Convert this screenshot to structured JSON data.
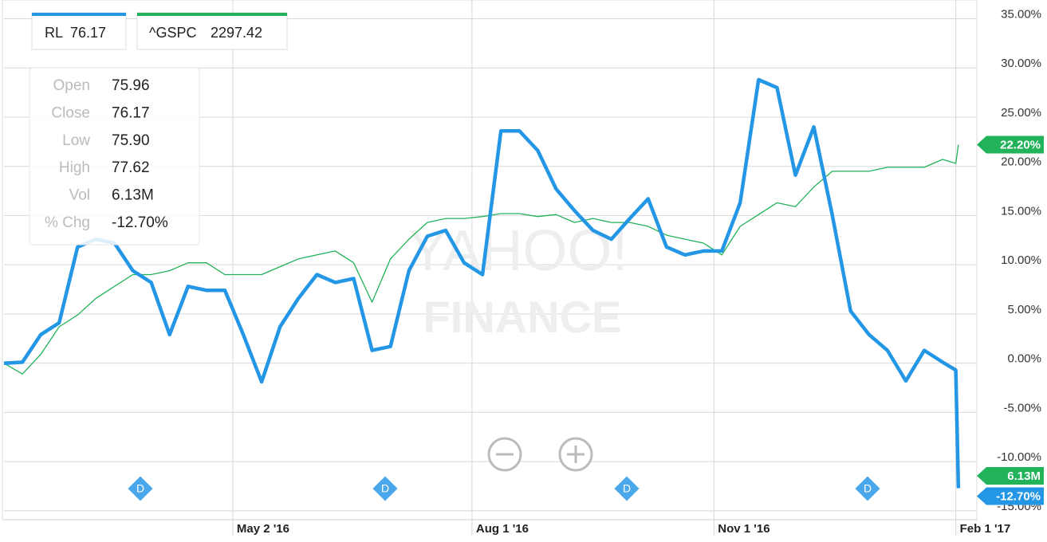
{
  "chart_data": {
    "type": "line",
    "x": [
      "2016-02-05",
      "2016-02-12",
      "2016-02-19",
      "2016-02-26",
      "2016-03-04",
      "2016-03-11",
      "2016-03-18",
      "2016-03-25",
      "2016-04-01",
      "2016-04-08",
      "2016-04-15",
      "2016-04-22",
      "2016-04-29",
      "2016-05-06",
      "2016-05-13",
      "2016-05-20",
      "2016-05-27",
      "2016-06-03",
      "2016-06-10",
      "2016-06-17",
      "2016-06-24",
      "2016-07-01",
      "2016-07-08",
      "2016-07-15",
      "2016-07-22",
      "2016-07-29",
      "2016-08-05",
      "2016-08-12",
      "2016-08-19",
      "2016-08-26",
      "2016-09-02",
      "2016-09-09",
      "2016-09-16",
      "2016-09-23",
      "2016-09-30",
      "2016-10-07",
      "2016-10-14",
      "2016-10-21",
      "2016-10-28",
      "2016-11-04",
      "2016-11-11",
      "2016-11-18",
      "2016-11-25",
      "2016-12-02",
      "2016-12-09",
      "2016-12-16",
      "2016-12-23",
      "2016-12-30",
      "2017-01-06",
      "2017-01-13",
      "2017-01-20",
      "2017-01-27",
      "2017-02-01",
      "2017-02-02"
    ],
    "series": [
      {
        "name": "RL",
        "last_price": "76.17",
        "color": "#2396e6",
        "last_value_label": "-12.70%",
        "values": [
          0,
          0.1,
          2.9,
          4.1,
          11.8,
          12.6,
          12.2,
          9.4,
          8.2,
          2.9,
          7.8,
          7.4,
          7.4,
          2.9,
          -1.9,
          3.7,
          6.6,
          9.0,
          8.2,
          8.6,
          1.3,
          1.7,
          9.4,
          12.9,
          13.5,
          10.2,
          9.0,
          23.6,
          23.6,
          21.6,
          17.7,
          15.5,
          13.5,
          12.6,
          14.7,
          16.7,
          11.8,
          11.0,
          11.4,
          11.4,
          16.3,
          28.8,
          28.0,
          19.1,
          24.0,
          15.1,
          5.3,
          2.9,
          1.3,
          -1.8,
          1.3,
          0.1,
          -0.7,
          -12.7
        ]
      },
      {
        "name": "^GSPC",
        "last_price": "2297.42",
        "color": "#21b25a",
        "last_value_label": "22.20%",
        "values": [
          0,
          -1.1,
          0.9,
          3.7,
          4.9,
          6.6,
          7.8,
          9.0,
          9.0,
          9.4,
          10.2,
          10.2,
          9.0,
          9.0,
          9.0,
          9.8,
          10.6,
          11.0,
          11.4,
          10.2,
          6.2,
          10.6,
          12.6,
          14.3,
          14.7,
          14.7,
          14.9,
          15.2,
          15.2,
          14.9,
          15.1,
          14.3,
          14.7,
          14.3,
          14.3,
          13.9,
          13.0,
          12.6,
          12.2,
          11.0,
          13.9,
          15.1,
          16.3,
          15.9,
          17.9,
          19.5,
          19.5,
          19.5,
          19.9,
          19.9,
          19.9,
          20.7,
          20.3,
          22.2
        ]
      }
    ],
    "xlim": [
      "2016-02-05",
      "2017-02-09"
    ],
    "xticks": [
      {
        "value": "2016-05-02",
        "label": "May 2 '16"
      },
      {
        "value": "2016-08-01",
        "label": "Aug 1 '16"
      },
      {
        "value": "2016-11-01",
        "label": "Nov 1 '16"
      },
      {
        "value": "2017-02-01",
        "label": "Feb 1 '17"
      }
    ],
    "ylim": [
      -15.9,
      36.9
    ],
    "yticks": [
      {
        "value": 35,
        "label": "35.00%"
      },
      {
        "value": 30,
        "label": "30.00%"
      },
      {
        "value": 25,
        "label": "25.00%"
      },
      {
        "value": 20,
        "label": "20.00%"
      },
      {
        "value": 15,
        "label": "15.00%"
      },
      {
        "value": 10,
        "label": "10.00%"
      },
      {
        "value": 5,
        "label": "5.00%"
      },
      {
        "value": 0,
        "label": "0.00%"
      },
      {
        "value": -5,
        "label": "-5.00%"
      },
      {
        "value": -10,
        "label": "-10.00%"
      },
      {
        "value": -15,
        "label": "-15.00%"
      }
    ],
    "grid": true,
    "volume_label": "6.13M",
    "tooltip": [
      [
        "Open",
        "75.96"
      ],
      [
        "Close",
        "76.17"
      ],
      [
        "Low",
        "75.90"
      ],
      [
        "High",
        "77.62"
      ],
      [
        "Vol",
        "6.13M"
      ],
      [
        "% Chg",
        "-12.70%"
      ]
    ],
    "dividend_label": "D",
    "watermark": [
      "YAHOO!",
      "FINANCE"
    ]
  }
}
